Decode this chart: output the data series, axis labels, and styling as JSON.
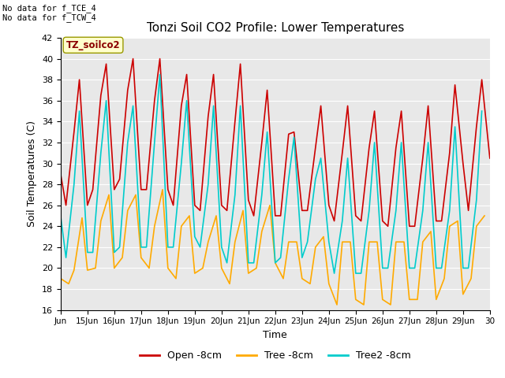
{
  "title": "Tonzi Soil CO2 Profile: Lower Temperatures",
  "xlabel": "Time",
  "ylabel": "Soil Temperatures (C)",
  "ylim": [
    16,
    42
  ],
  "yticks": [
    16,
    18,
    20,
    22,
    24,
    26,
    28,
    30,
    32,
    34,
    36,
    38,
    40,
    42
  ],
  "fig_bg_color": "#ffffff",
  "plot_bg_color": "#e8e8e8",
  "annotation_top_left": "No data for f_TCE_4\nNo data for f_TCW_4",
  "legend_label_box": "TZ_soilco2",
  "colors": {
    "open": "#cc0000",
    "tree": "#ffaa00",
    "tree2": "#00cccc"
  },
  "x_start": 14,
  "x_end": 30,
  "xtick_labels": [
    "Jun",
    "15Jun",
    "16Jun",
    "17Jun",
    "18Jun",
    "19Jun",
    "20Jun",
    "21Jun",
    "22Jun",
    "23Jun",
    "24Jun",
    "25Jun",
    "26Jun",
    "27Jun",
    "28Jun",
    "29Jun",
    "30"
  ],
  "xtick_positions": [
    14,
    15,
    16,
    17,
    18,
    19,
    20,
    21,
    22,
    23,
    24,
    25,
    26,
    27,
    28,
    29,
    30
  ],
  "open_data": {
    "x": [
      14.0,
      14.2,
      14.5,
      14.7,
      15.0,
      15.2,
      15.5,
      15.7,
      16.0,
      16.2,
      16.5,
      16.7,
      17.0,
      17.2,
      17.5,
      17.7,
      18.0,
      18.2,
      18.5,
      18.7,
      19.0,
      19.2,
      19.5,
      19.7,
      20.0,
      20.2,
      20.5,
      20.7,
      21.0,
      21.2,
      21.5,
      21.7,
      22.0,
      22.2,
      22.5,
      22.7,
      23.0,
      23.2,
      23.5,
      23.7,
      24.0,
      24.2,
      24.5,
      24.7,
      25.0,
      25.2,
      25.5,
      25.7,
      26.0,
      26.2,
      26.5,
      26.7,
      27.0,
      27.2,
      27.5,
      27.7,
      28.0,
      28.2,
      28.5,
      28.7,
      29.0,
      29.2,
      29.5,
      29.7,
      30.0
    ],
    "y": [
      29.0,
      26.0,
      33.0,
      38.0,
      26.0,
      27.5,
      36.5,
      39.5,
      27.5,
      28.5,
      37.0,
      40.0,
      27.5,
      27.5,
      36.0,
      40.0,
      27.5,
      26.0,
      35.5,
      38.5,
      26.0,
      25.5,
      34.5,
      38.5,
      26.0,
      25.5,
      34.0,
      39.5,
      26.5,
      25.0,
      32.0,
      37.0,
      25.0,
      25.0,
      32.8,
      33.0,
      25.5,
      25.5,
      31.5,
      35.5,
      26.0,
      24.5,
      31.0,
      35.5,
      25.0,
      24.5,
      31.5,
      35.0,
      24.5,
      24.0,
      31.5,
      35.0,
      24.0,
      24.0,
      30.5,
      35.5,
      24.5,
      24.5,
      31.0,
      37.5,
      30.0,
      25.5,
      33.5,
      38.0,
      30.5
    ]
  },
  "tree_data": {
    "x": [
      14.0,
      14.3,
      14.5,
      14.8,
      15.0,
      15.3,
      15.5,
      15.8,
      16.0,
      16.3,
      16.5,
      16.8,
      17.0,
      17.3,
      17.5,
      17.8,
      18.0,
      18.3,
      18.5,
      18.8,
      19.0,
      19.3,
      19.5,
      19.8,
      20.0,
      20.3,
      20.5,
      20.8,
      21.0,
      21.3,
      21.5,
      21.8,
      22.0,
      22.3,
      22.5,
      22.8,
      23.0,
      23.3,
      23.5,
      23.8,
      24.0,
      24.3,
      24.5,
      24.8,
      25.0,
      25.3,
      25.5,
      25.8,
      26.0,
      26.3,
      26.5,
      26.8,
      27.0,
      27.3,
      27.5,
      27.8,
      28.0,
      28.3,
      28.5,
      28.8,
      29.0,
      29.3,
      29.5,
      29.8
    ],
    "y": [
      19.0,
      18.5,
      19.8,
      24.8,
      19.8,
      20.0,
      24.5,
      27.0,
      20.0,
      21.0,
      25.5,
      27.0,
      21.0,
      20.0,
      24.0,
      27.5,
      20.0,
      19.0,
      24.0,
      25.0,
      19.5,
      20.0,
      22.5,
      25.0,
      20.0,
      18.5,
      22.5,
      25.5,
      19.5,
      20.0,
      23.5,
      26.0,
      20.5,
      19.0,
      22.5,
      22.5,
      19.0,
      18.5,
      22.0,
      23.0,
      18.5,
      16.5,
      22.5,
      22.5,
      17.0,
      16.5,
      22.5,
      22.5,
      17.0,
      16.5,
      22.5,
      22.5,
      17.0,
      17.0,
      22.5,
      23.5,
      17.0,
      19.0,
      24.0,
      24.5,
      17.5,
      19.0,
      24.0,
      25.0
    ]
  },
  "tree2_data": {
    "x": [
      14.0,
      14.2,
      14.5,
      14.7,
      15.0,
      15.2,
      15.5,
      15.7,
      16.0,
      16.2,
      16.5,
      16.7,
      17.0,
      17.2,
      17.5,
      17.7,
      18.0,
      18.2,
      18.5,
      18.7,
      19.0,
      19.2,
      19.5,
      19.7,
      20.0,
      20.2,
      20.5,
      20.7,
      21.0,
      21.2,
      21.5,
      21.7,
      22.0,
      22.2,
      22.5,
      22.7,
      23.0,
      23.2,
      23.5,
      23.7,
      24.0,
      24.2,
      24.5,
      24.7,
      25.0,
      25.2,
      25.5,
      25.7,
      26.0,
      26.2,
      26.5,
      26.7,
      27.0,
      27.2,
      27.5,
      27.7,
      28.0,
      28.2,
      28.5,
      28.7,
      29.0,
      29.2,
      29.5,
      29.7
    ],
    "y": [
      25.0,
      21.0,
      28.0,
      35.0,
      21.5,
      21.5,
      31.0,
      36.0,
      21.5,
      22.0,
      32.0,
      35.5,
      22.0,
      22.0,
      32.0,
      38.5,
      22.0,
      22.0,
      30.0,
      36.0,
      23.0,
      22.0,
      28.0,
      35.5,
      22.0,
      20.5,
      27.0,
      35.5,
      20.5,
      20.5,
      27.0,
      33.0,
      20.5,
      21.0,
      28.5,
      32.5,
      21.0,
      22.5,
      28.5,
      30.5,
      22.5,
      19.5,
      24.5,
      30.5,
      19.5,
      19.5,
      25.5,
      32.0,
      20.0,
      20.0,
      25.5,
      32.0,
      20.0,
      20.0,
      25.5,
      32.0,
      20.0,
      20.0,
      25.5,
      33.5,
      20.0,
      20.0,
      26.5,
      35.0
    ]
  }
}
